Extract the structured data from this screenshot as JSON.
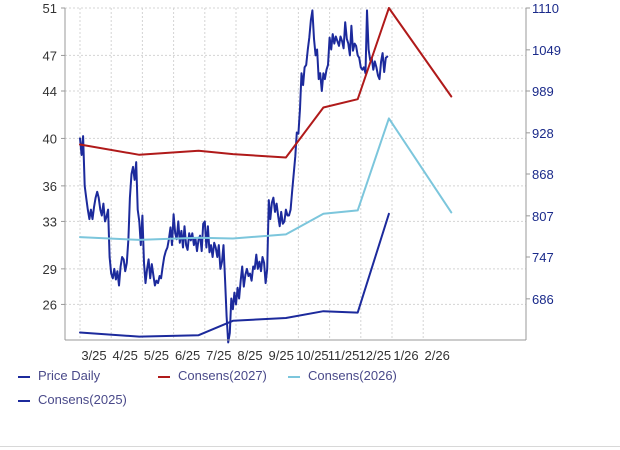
{
  "chart_data": {
    "type": "line",
    "x_ticks": [
      "3/25",
      "4/25",
      "5/25",
      "6/25",
      "7/25",
      "8/25",
      "9/25",
      "10/25",
      "11/25",
      "12/25",
      "1/26",
      "2/26"
    ],
    "y_left": {
      "ticks": [
        26,
        29,
        33,
        36,
        40,
        44,
        47,
        51
      ],
      "range": [
        23,
        51
      ]
    },
    "y_right": {
      "ticks": [
        686,
        747,
        807,
        868,
        928,
        989,
        1049,
        1110
      ],
      "range": [
        626,
        1110
      ]
    },
    "grid": true,
    "legend_placement": "bottom",
    "series": [
      {
        "name": "Price Daily",
        "axis": "left",
        "color": "#1c2a9c",
        "points": [
          [
            0.0,
            40.0
          ],
          [
            0.05,
            38.6
          ],
          [
            0.1,
            40.2
          ],
          [
            0.15,
            36.0
          ],
          [
            0.2,
            35.0
          ],
          [
            0.25,
            34.0
          ],
          [
            0.3,
            33.2
          ],
          [
            0.35,
            34.0
          ],
          [
            0.4,
            33.2
          ],
          [
            0.45,
            34.2
          ],
          [
            0.5,
            35.0
          ],
          [
            0.55,
            35.5
          ],
          [
            0.6,
            35.0
          ],
          [
            0.65,
            34.0
          ],
          [
            0.7,
            33.5
          ],
          [
            0.75,
            34.5
          ],
          [
            0.8,
            33.0
          ],
          [
            0.85,
            33.4
          ],
          [
            0.9,
            34.0
          ],
          [
            0.95,
            30.0
          ],
          [
            1.0,
            28.6
          ],
          [
            1.05,
            28.2
          ],
          [
            1.1,
            29.0
          ],
          [
            1.15,
            28.1
          ],
          [
            1.2,
            28.8
          ],
          [
            1.25,
            27.6
          ],
          [
            1.3,
            29.2
          ],
          [
            1.35,
            30.0
          ],
          [
            1.4,
            29.8
          ],
          [
            1.45,
            28.8
          ],
          [
            1.5,
            29.5
          ],
          [
            1.55,
            31.5
          ],
          [
            1.6,
            35.0
          ],
          [
            1.65,
            37.0
          ],
          [
            1.7,
            37.6
          ],
          [
            1.75,
            36.5
          ],
          [
            1.8,
            38.0
          ],
          [
            1.85,
            34.0
          ],
          [
            1.9,
            33.0
          ],
          [
            1.95,
            31.0
          ],
          [
            2.0,
            33.5
          ],
          [
            2.05,
            29.5
          ],
          [
            2.1,
            27.8
          ],
          [
            2.15,
            29.0
          ],
          [
            2.2,
            29.8
          ],
          [
            2.25,
            28.2
          ],
          [
            2.3,
            29.4
          ],
          [
            2.35,
            28.5
          ],
          [
            2.4,
            27.6
          ],
          [
            2.45,
            28.0
          ],
          [
            2.5,
            27.8
          ],
          [
            2.55,
            28.4
          ],
          [
            2.6,
            28.2
          ],
          [
            2.65,
            29.2
          ],
          [
            2.7,
            30.0
          ],
          [
            2.75,
            30.5
          ],
          [
            2.8,
            30.8
          ],
          [
            2.85,
            31.5
          ],
          [
            2.9,
            32.5
          ],
          [
            2.95,
            31.0
          ],
          [
            3.0,
            33.6
          ],
          [
            3.05,
            32.0
          ],
          [
            3.1,
            31.5
          ],
          [
            3.15,
            33.0
          ],
          [
            3.2,
            31.2
          ],
          [
            3.25,
            32.2
          ],
          [
            3.3,
            30.8
          ],
          [
            3.35,
            32.6
          ],
          [
            3.4,
            31.0
          ],
          [
            3.45,
            30.6
          ],
          [
            3.5,
            32.0
          ],
          [
            3.55,
            31.4
          ],
          [
            3.6,
            32.0
          ],
          [
            3.65,
            31.0
          ],
          [
            3.7,
            31.6
          ],
          [
            3.75,
            30.5
          ],
          [
            3.8,
            31.5
          ],
          [
            3.85,
            31.8
          ],
          [
            3.9,
            30.5
          ],
          [
            3.95,
            32.8
          ],
          [
            4.0,
            33.0
          ],
          [
            4.05,
            30.8
          ],
          [
            4.1,
            32.6
          ],
          [
            4.15,
            30.4
          ],
          [
            4.2,
            31.0
          ],
          [
            4.25,
            30.0
          ],
          [
            4.3,
            31.2
          ],
          [
            4.35,
            30.8
          ],
          [
            4.4,
            30.0
          ],
          [
            4.45,
            31.0
          ],
          [
            4.5,
            29.0
          ],
          [
            4.55,
            29.6
          ],
          [
            4.6,
            31.0
          ],
          [
            4.65,
            28.0
          ],
          [
            4.7,
            25.0
          ],
          [
            4.75,
            22.8
          ],
          [
            4.8,
            23.6
          ],
          [
            4.85,
            26.5
          ],
          [
            4.9,
            25.6
          ],
          [
            4.95,
            27.0
          ],
          [
            5.0,
            26.0
          ],
          [
            5.05,
            27.4
          ],
          [
            5.1,
            26.5
          ],
          [
            5.15,
            28.0
          ],
          [
            5.2,
            29.2
          ],
          [
            5.25,
            27.5
          ],
          [
            5.3,
            28.5
          ],
          [
            5.35,
            29.0
          ],
          [
            5.4,
            28.4
          ],
          [
            5.45,
            28.6
          ],
          [
            5.5,
            28.0
          ],
          [
            5.55,
            29.2
          ],
          [
            5.6,
            29.0
          ],
          [
            5.65,
            30.2
          ],
          [
            5.7,
            29.0
          ],
          [
            5.75,
            29.6
          ],
          [
            5.8,
            28.8
          ],
          [
            5.85,
            30.0
          ],
          [
            5.9,
            29.5
          ],
          [
            5.95,
            27.8
          ],
          [
            6.0,
            29.0
          ],
          [
            6.05,
            34.8
          ],
          [
            6.1,
            33.2
          ],
          [
            6.15,
            34.6
          ],
          [
            6.2,
            35.0
          ],
          [
            6.25,
            33.8
          ],
          [
            6.3,
            34.5
          ],
          [
            6.35,
            33.5
          ],
          [
            6.4,
            32.6
          ],
          [
            6.45,
            33.8
          ],
          [
            6.5,
            32.8
          ],
          [
            6.55,
            33.0
          ],
          [
            6.6,
            34.0
          ],
          [
            6.65,
            33.5
          ],
          [
            6.7,
            33.5
          ],
          [
            6.75,
            34.0
          ],
          [
            6.8,
            35.6
          ],
          [
            6.85,
            37.0
          ],
          [
            6.9,
            38.5
          ],
          [
            6.95,
            40.5
          ],
          [
            7.0,
            40.4
          ],
          [
            7.05,
            42.5
          ],
          [
            7.1,
            45.5
          ],
          [
            7.15,
            44.5
          ],
          [
            7.2,
            46.0
          ],
          [
            7.25,
            46.2
          ],
          [
            7.3,
            47.5
          ],
          [
            7.35,
            48.5
          ],
          [
            7.4,
            50.0
          ],
          [
            7.45,
            50.8
          ],
          [
            7.5,
            48.4
          ],
          [
            7.55,
            47.0
          ],
          [
            7.6,
            47.5
          ],
          [
            7.65,
            45.0
          ],
          [
            7.7,
            45.5
          ],
          [
            7.75,
            44.0
          ],
          [
            7.8,
            45.5
          ],
          [
            7.85,
            45.0
          ],
          [
            7.9,
            45.8
          ],
          [
            7.95,
            46.2
          ],
          [
            8.0,
            48.5
          ],
          [
            8.05,
            47.5
          ],
          [
            8.1,
            48.8
          ],
          [
            8.15,
            48.0
          ],
          [
            8.2,
            48.6
          ],
          [
            8.25,
            48.2
          ],
          [
            8.3,
            47.8
          ],
          [
            8.35,
            48.6
          ],
          [
            8.4,
            48.2
          ],
          [
            8.45,
            47.6
          ],
          [
            8.5,
            49.8
          ],
          [
            8.55,
            48.4
          ],
          [
            8.6,
            48.0
          ],
          [
            8.65,
            47.0
          ],
          [
            8.7,
            49.5
          ],
          [
            8.75,
            47.4
          ],
          [
            8.8,
            48.0
          ],
          [
            8.85,
            47.8
          ],
          [
            8.9,
            47.0
          ],
          [
            8.95,
            46.8
          ],
          [
            9.0,
            46.0
          ],
          [
            9.05,
            45.8
          ],
          [
            9.1,
            46.0
          ],
          [
            9.15,
            45.5
          ],
          [
            9.2,
            50.8
          ],
          [
            9.25,
            47.5
          ],
          [
            9.3,
            46.6
          ],
          [
            9.35,
            46.8
          ],
          [
            9.4,
            45.8
          ],
          [
            9.45,
            46.5
          ],
          [
            9.5,
            46.0
          ],
          [
            9.55,
            45.3
          ],
          [
            9.6,
            45.0
          ],
          [
            9.65,
            46.5
          ],
          [
            9.7,
            47.2
          ],
          [
            9.75,
            45.6
          ],
          [
            9.8,
            46.8
          ],
          [
            9.85,
            46.9
          ]
        ]
      },
      {
        "name": "Consens(2027)",
        "axis": "right",
        "color": "#b01a1a",
        "points": [
          [
            0.0,
            911
          ],
          [
            1.9,
            896
          ],
          [
            3.8,
            902
          ],
          [
            4.9,
            897
          ],
          [
            6.6,
            892
          ],
          [
            7.8,
            965
          ],
          [
            8.9,
            977
          ],
          [
            9.9,
            1110
          ],
          [
            11.9,
            981
          ]
        ]
      },
      {
        "name": "Consens(2026)",
        "axis": "right",
        "color": "#7cc6dc",
        "points": [
          [
            0.0,
            776
          ],
          [
            1.9,
            772
          ],
          [
            3.8,
            775
          ],
          [
            4.9,
            774
          ],
          [
            6.6,
            780
          ],
          [
            7.8,
            810
          ],
          [
            8.9,
            815
          ],
          [
            9.9,
            949
          ],
          [
            11.9,
            812
          ]
        ]
      },
      {
        "name": "Consens(2025)",
        "axis": "right",
        "color": "#1c2a9c",
        "points": [
          [
            0.0,
            637
          ],
          [
            1.9,
            631
          ],
          [
            3.8,
            633
          ],
          [
            4.9,
            654
          ],
          [
            6.6,
            658
          ],
          [
            7.8,
            668
          ],
          [
            8.9,
            666
          ],
          [
            9.9,
            810
          ]
        ]
      }
    ]
  }
}
